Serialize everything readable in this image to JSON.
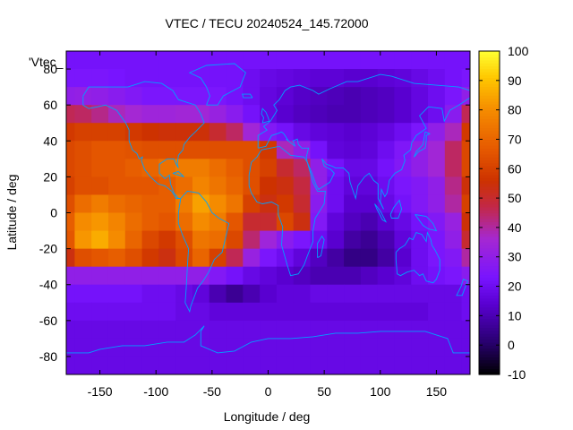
{
  "chart_data": {
    "type": "heatmap",
    "title": "VTEC / TECU 20240524_145.72000",
    "xlabel": "Longitude / deg",
    "ylabel": "Latitude / deg",
    "series_label": "'Vtec_",
    "xlim": [
      -180,
      180
    ],
    "ylim": [
      -90,
      90
    ],
    "x_ticks": [
      -150,
      -100,
      -50,
      0,
      50,
      100,
      150
    ],
    "y_ticks": [
      -80,
      -60,
      -40,
      -20,
      0,
      20,
      40,
      60,
      80
    ],
    "colorbar": {
      "min": -10,
      "max": 100,
      "ticks": [
        -10,
        0,
        10,
        20,
        30,
        40,
        50,
        60,
        70,
        80,
        90,
        100
      ],
      "palette": "black-blue-purple-red-orange-yellow"
    },
    "grid": false,
    "grid_lon": [
      -180,
      -165,
      -150,
      -135,
      -120,
      -105,
      -90,
      -75,
      -60,
      -45,
      -30,
      -15,
      0,
      15,
      30,
      45,
      60,
      75,
      90,
      105,
      120,
      135,
      150,
      165,
      180
    ],
    "grid_lat": [
      85,
      75,
      65,
      55,
      45,
      35,
      25,
      15,
      5,
      -5,
      -15,
      -25,
      -35,
      -45,
      -55,
      -65,
      -75,
      -85
    ],
    "values": [
      [
        22,
        22,
        22,
        22,
        22,
        22,
        22,
        22,
        22,
        22,
        22,
        22,
        22,
        22,
        22,
        22,
        22,
        22,
        22,
        22,
        22,
        22,
        22,
        22,
        22
      ],
      [
        24,
        24,
        24,
        23,
        22,
        22,
        22,
        22,
        22,
        22,
        22,
        20,
        18,
        17,
        16,
        15,
        15,
        14,
        14,
        15,
        16,
        18,
        20,
        22,
        24
      ],
      [
        30,
        31,
        30,
        28,
        26,
        24,
        24,
        24,
        24,
        24,
        22,
        20,
        17,
        15,
        13,
        12,
        11,
        10,
        11,
        12,
        14,
        17,
        20,
        24,
        30
      ],
      [
        46,
        45,
        42,
        38,
        36,
        34,
        34,
        35,
        35,
        32,
        28,
        22,
        17,
        14,
        12,
        11,
        10,
        10,
        11,
        12,
        14,
        17,
        20,
        28,
        46
      ],
      [
        58,
        60,
        60,
        60,
        58,
        56,
        55,
        55,
        55,
        50,
        45,
        35,
        26,
        22,
        18,
        16,
        15,
        14,
        15,
        17,
        20,
        24,
        30,
        38,
        58
      ],
      [
        62,
        64,
        66,
        66,
        65,
        64,
        64,
        64,
        64,
        64,
        64,
        64,
        58,
        38,
        30,
        22,
        16,
        15,
        16,
        20,
        25,
        30,
        35,
        45,
        62
      ],
      [
        62,
        64,
        66,
        66,
        68,
        70,
        73,
        76,
        76,
        72,
        68,
        64,
        60,
        50,
        45,
        30,
        22,
        18,
        18,
        22,
        26,
        30,
        35,
        45,
        62
      ],
      [
        60,
        64,
        64,
        66,
        66,
        66,
        68,
        72,
        78,
        74,
        70,
        64,
        56,
        54,
        48,
        30,
        20,
        16,
        16,
        20,
        24,
        26,
        30,
        42,
        55
      ],
      [
        64,
        72,
        76,
        72,
        70,
        68,
        68,
        76,
        84,
        80,
        74,
        60,
        54,
        58,
        50,
        28,
        20,
        14,
        14,
        18,
        22,
        26,
        30,
        40,
        60
      ],
      [
        68,
        80,
        82,
        78,
        72,
        68,
        66,
        72,
        80,
        76,
        66,
        50,
        50,
        62,
        54,
        26,
        16,
        12,
        10,
        14,
        18,
        22,
        26,
        32,
        55
      ],
      [
        66,
        82,
        86,
        80,
        70,
        62,
        58,
        64,
        74,
        72,
        62,
        44,
        34,
        28,
        24,
        20,
        14,
        8,
        6,
        10,
        16,
        20,
        24,
        30,
        50
      ],
      [
        54,
        64,
        66,
        68,
        64,
        58,
        54,
        62,
        70,
        60,
        46,
        32,
        24,
        20,
        16,
        12,
        8,
        4,
        4,
        8,
        14,
        20,
        24,
        26,
        40
      ],
      [
        30,
        30,
        30,
        30,
        30,
        30,
        30,
        30,
        30,
        26,
        22,
        18,
        16,
        14,
        12,
        10,
        10,
        10,
        12,
        14,
        16,
        20,
        22,
        24,
        28
      ],
      [
        22,
        22,
        22,
        22,
        22,
        20,
        20,
        18,
        16,
        10,
        6,
        10,
        14,
        16,
        16,
        18,
        18,
        18,
        18,
        18,
        18,
        18,
        18,
        18,
        20
      ],
      [
        20,
        20,
        20,
        20,
        20,
        20,
        20,
        18,
        18,
        16,
        16,
        16,
        16,
        16,
        16,
        16,
        16,
        16,
        16,
        16,
        16,
        16,
        18,
        18,
        20
      ],
      [
        18,
        18,
        18,
        18,
        18,
        18,
        18,
        18,
        18,
        18,
        18,
        18,
        18,
        18,
        18,
        18,
        18,
        18,
        18,
        18,
        18,
        18,
        18,
        18,
        18
      ],
      [
        18,
        18,
        18,
        18,
        18,
        18,
        18,
        18,
        18,
        18,
        18,
        18,
        18,
        18,
        18,
        18,
        18,
        18,
        18,
        18,
        18,
        18,
        18,
        18,
        18
      ],
      [
        18,
        18,
        18,
        18,
        18,
        18,
        18,
        18,
        18,
        18,
        18,
        18,
        18,
        18,
        18,
        18,
        18,
        18,
        18,
        18,
        18,
        18,
        18,
        18,
        18
      ]
    ],
    "overlay": "coastlines",
    "coastline_color": "#00a0ff"
  }
}
